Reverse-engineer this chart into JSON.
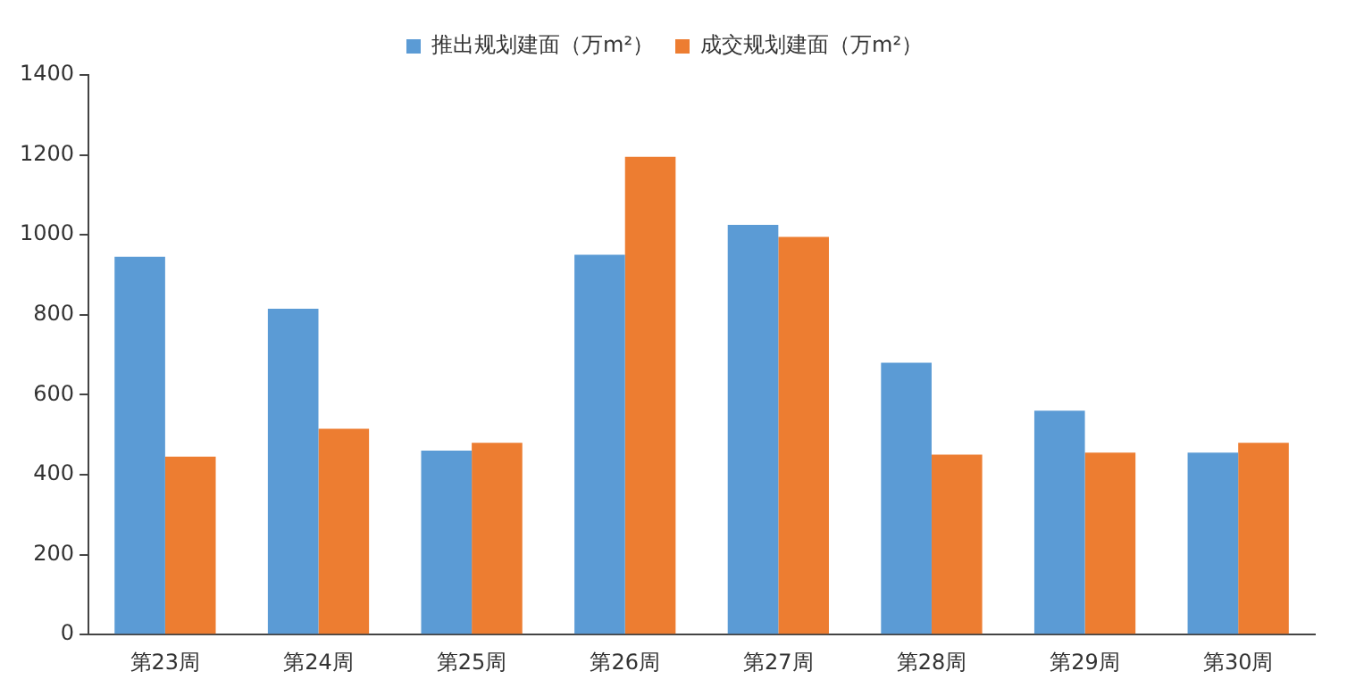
{
  "chart_data": {
    "type": "bar",
    "categories": [
      "第23周",
      "第24周",
      "第25周",
      "第26周",
      "第27周",
      "第28周",
      "第29周",
      "第30周"
    ],
    "series": [
      {
        "name": "推出规划建面（万m²）",
        "color": "#5b9bd5",
        "values": [
          945,
          815,
          460,
          950,
          1025,
          680,
          560,
          455
        ]
      },
      {
        "name": "成交规划建面（万m²）",
        "color": "#ed7d31",
        "values": [
          445,
          515,
          480,
          1195,
          995,
          450,
          455,
          480
        ]
      }
    ],
    "ylim": [
      0,
      1400
    ],
    "yticks": [
      0,
      200,
      400,
      600,
      800,
      1000,
      1200,
      1400
    ],
    "grid": false,
    "legend": "top"
  }
}
